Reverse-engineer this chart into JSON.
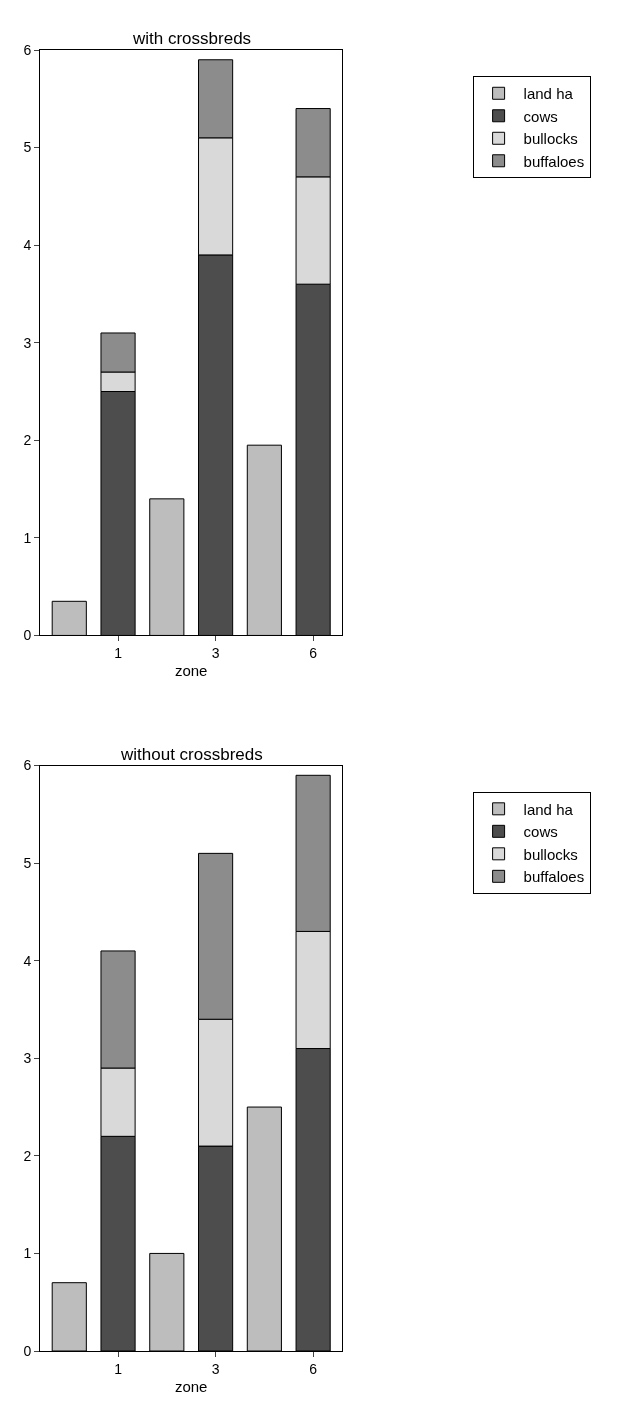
{
  "chart_data": [
    {
      "type": "bar",
      "stacked": true,
      "title": "with crossbreds",
      "xlabel": "zone",
      "categories": [
        null,
        "1",
        null,
        "3",
        null,
        "6"
      ],
      "ylim": [
        0,
        6
      ],
      "yticks": [
        0,
        1,
        2,
        3,
        4,
        5,
        6
      ],
      "legend": "right",
      "series": [
        {
          "name": "land ha",
          "color": "#bdbdbd",
          "values": [
            0.35,
            null,
            1.4,
            null,
            1.95,
            null
          ]
        },
        {
          "name": "cows",
          "color": "#4d4d4d",
          "values": [
            null,
            2.5,
            null,
            3.9,
            null,
            3.6
          ]
        },
        {
          "name": "bullocks",
          "color": "#d9d9d9",
          "values": [
            null,
            0.2,
            null,
            1.2,
            null,
            1.1
          ]
        },
        {
          "name": "buffaloes",
          "color": "#8c8c8c",
          "values": [
            null,
            0.4,
            null,
            0.8,
            null,
            0.7
          ]
        }
      ]
    },
    {
      "type": "bar",
      "stacked": true,
      "title": "without crossbreds",
      "xlabel": "zone",
      "categories": [
        null,
        "1",
        null,
        "3",
        null,
        "6"
      ],
      "ylim": [
        0,
        6
      ],
      "yticks": [
        0,
        1,
        2,
        3,
        4,
        5,
        6
      ],
      "legend": "right",
      "series": [
        {
          "name": "land ha",
          "color": "#bdbdbd",
          "values": [
            0.7,
            null,
            1.0,
            null,
            2.5,
            null
          ]
        },
        {
          "name": "cows",
          "color": "#4d4d4d",
          "values": [
            null,
            2.2,
            null,
            2.1,
            null,
            3.1
          ]
        },
        {
          "name": "bullocks",
          "color": "#d9d9d9",
          "values": [
            null,
            0.7,
            null,
            1.3,
            null,
            1.2
          ]
        },
        {
          "name": "buffaloes",
          "color": "#8c8c8c",
          "values": [
            null,
            1.2,
            null,
            1.7,
            null,
            1.6
          ]
        }
      ]
    }
  ]
}
